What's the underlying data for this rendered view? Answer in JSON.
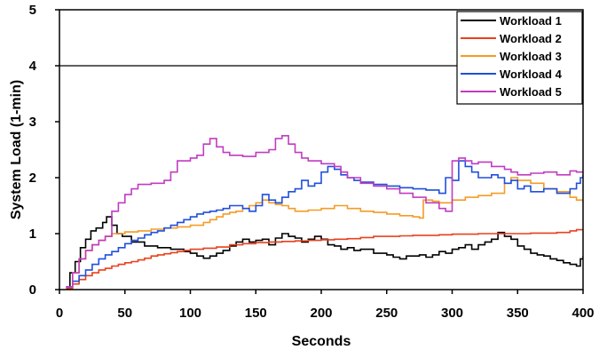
{
  "chart_data": {
    "type": "line",
    "title": "",
    "xlabel": "Seconds",
    "ylabel": "System Load (1-min)",
    "xlim": [
      0,
      400
    ],
    "ylim": [
      0,
      5
    ],
    "xticks": [
      "0",
      "50",
      "100",
      "150",
      "200",
      "250",
      "300",
      "350",
      "400"
    ],
    "yticks": [
      "0",
      "1",
      "2",
      "3",
      "4",
      "5"
    ],
    "grid": false,
    "legend_position": "top-right",
    "reference_line": {
      "y": 4,
      "color": "#000000"
    },
    "series": [
      {
        "name": "Workload 1",
        "color": "#000000",
        "step": true,
        "points": [
          [
            5,
            0.05
          ],
          [
            8,
            0.3
          ],
          [
            12,
            0.5
          ],
          [
            16,
            0.75
          ],
          [
            20,
            0.9
          ],
          [
            24,
            1.05
          ],
          [
            28,
            1.1
          ],
          [
            33,
            1.2
          ],
          [
            36,
            1.3
          ],
          [
            40,
            1.15
          ],
          [
            44,
            1.0
          ],
          [
            48,
            0.95
          ],
          [
            55,
            0.85
          ],
          [
            65,
            0.78
          ],
          [
            75,
            0.75
          ],
          [
            85,
            0.72
          ],
          [
            95,
            0.68
          ],
          [
            100,
            0.65
          ],
          [
            105,
            0.6
          ],
          [
            110,
            0.56
          ],
          [
            115,
            0.6
          ],
          [
            120,
            0.65
          ],
          [
            125,
            0.7
          ],
          [
            130,
            0.78
          ],
          [
            135,
            0.85
          ],
          [
            140,
            0.9
          ],
          [
            145,
            0.85
          ],
          [
            150,
            0.88
          ],
          [
            155,
            0.9
          ],
          [
            160,
            0.8
          ],
          [
            165,
            0.92
          ],
          [
            170,
            1.0
          ],
          [
            175,
            0.95
          ],
          [
            180,
            0.92
          ],
          [
            185,
            0.85
          ],
          [
            190,
            0.9
          ],
          [
            195,
            0.95
          ],
          [
            200,
            0.9
          ],
          [
            205,
            0.8
          ],
          [
            210,
            0.78
          ],
          [
            215,
            0.72
          ],
          [
            220,
            0.75
          ],
          [
            225,
            0.7
          ],
          [
            230,
            0.72
          ],
          [
            240,
            0.65
          ],
          [
            250,
            0.62
          ],
          [
            255,
            0.58
          ],
          [
            260,
            0.55
          ],
          [
            265,
            0.6
          ],
          [
            275,
            0.62
          ],
          [
            280,
            0.58
          ],
          [
            285,
            0.62
          ],
          [
            290,
            0.68
          ],
          [
            295,
            0.65
          ],
          [
            300,
            0.72
          ],
          [
            305,
            0.75
          ],
          [
            310,
            0.8
          ],
          [
            315,
            0.72
          ],
          [
            320,
            0.8
          ],
          [
            325,
            0.85
          ],
          [
            330,
            0.9
          ],
          [
            335,
            1.02
          ],
          [
            340,
            0.95
          ],
          [
            345,
            0.9
          ],
          [
            350,
            0.78
          ],
          [
            355,
            0.72
          ],
          [
            360,
            0.65
          ],
          [
            365,
            0.62
          ],
          [
            370,
            0.6
          ],
          [
            375,
            0.55
          ],
          [
            380,
            0.52
          ],
          [
            385,
            0.48
          ],
          [
            390,
            0.45
          ],
          [
            395,
            0.42
          ],
          [
            398,
            0.55
          ],
          [
            400,
            0.6
          ]
        ]
      },
      {
        "name": "Workload 2",
        "color": "#e8401c",
        "step": true,
        "points": [
          [
            5,
            0.02
          ],
          [
            10,
            0.1
          ],
          [
            15,
            0.18
          ],
          [
            20,
            0.25
          ],
          [
            25,
            0.3
          ],
          [
            30,
            0.35
          ],
          [
            35,
            0.38
          ],
          [
            40,
            0.42
          ],
          [
            45,
            0.45
          ],
          [
            50,
            0.48
          ],
          [
            55,
            0.5
          ],
          [
            60,
            0.53
          ],
          [
            65,
            0.56
          ],
          [
            70,
            0.6
          ],
          [
            75,
            0.62
          ],
          [
            80,
            0.64
          ],
          [
            85,
            0.66
          ],
          [
            90,
            0.68
          ],
          [
            95,
            0.7
          ],
          [
            100,
            0.72
          ],
          [
            110,
            0.74
          ],
          [
            120,
            0.76
          ],
          [
            130,
            0.8
          ],
          [
            140,
            0.82
          ],
          [
            150,
            0.84
          ],
          [
            160,
            0.85
          ],
          [
            170,
            0.86
          ],
          [
            180,
            0.87
          ],
          [
            190,
            0.88
          ],
          [
            200,
            0.89
          ],
          [
            210,
            0.9
          ],
          [
            220,
            0.91
          ],
          [
            230,
            0.93
          ],
          [
            240,
            0.95
          ],
          [
            250,
            0.95
          ],
          [
            260,
            0.96
          ],
          [
            270,
            0.97
          ],
          [
            280,
            0.97
          ],
          [
            290,
            0.98
          ],
          [
            300,
            0.99
          ],
          [
            320,
            1.0
          ],
          [
            340,
            1.0
          ],
          [
            360,
            1.01
          ],
          [
            380,
            1.02
          ],
          [
            390,
            1.05
          ],
          [
            395,
            1.07
          ],
          [
            400,
            1.06
          ]
        ]
      },
      {
        "name": "Workload 3",
        "color": "#f39c26",
        "step": true,
        "points": [
          [
            5,
            0.05
          ],
          [
            10,
            0.3
          ],
          [
            15,
            0.55
          ],
          [
            20,
            0.7
          ],
          [
            25,
            0.8
          ],
          [
            30,
            0.88
          ],
          [
            35,
            0.95
          ],
          [
            40,
            1.0
          ],
          [
            50,
            1.03
          ],
          [
            60,
            1.05
          ],
          [
            70,
            1.08
          ],
          [
            80,
            1.1
          ],
          [
            90,
            1.12
          ],
          [
            100,
            1.15
          ],
          [
            110,
            1.2
          ],
          [
            115,
            1.25
          ],
          [
            120,
            1.3
          ],
          [
            125,
            1.35
          ],
          [
            130,
            1.38
          ],
          [
            135,
            1.4
          ],
          [
            140,
            1.45
          ],
          [
            145,
            1.5
          ],
          [
            150,
            1.55
          ],
          [
            155,
            1.6
          ],
          [
            160,
            1.55
          ],
          [
            165,
            1.52
          ],
          [
            170,
            1.5
          ],
          [
            175,
            1.45
          ],
          [
            180,
            1.4
          ],
          [
            190,
            1.42
          ],
          [
            200,
            1.45
          ],
          [
            210,
            1.5
          ],
          [
            220,
            1.45
          ],
          [
            230,
            1.4
          ],
          [
            240,
            1.38
          ],
          [
            250,
            1.35
          ],
          [
            260,
            1.32
          ],
          [
            270,
            1.3
          ],
          [
            275,
            1.28
          ],
          [
            278,
            1.6
          ],
          [
            285,
            1.58
          ],
          [
            290,
            1.55
          ],
          [
            300,
            1.6
          ],
          [
            310,
            1.65
          ],
          [
            320,
            1.68
          ],
          [
            330,
            1.72
          ],
          [
            340,
            1.9
          ],
          [
            345,
            2.0
          ],
          [
            350,
            1.95
          ],
          [
            360,
            1.9
          ],
          [
            370,
            1.8
          ],
          [
            380,
            1.75
          ],
          [
            390,
            1.65
          ],
          [
            395,
            1.6
          ],
          [
            400,
            1.55
          ]
        ]
      },
      {
        "name": "Workload 4",
        "color": "#1f4fdc",
        "step": true,
        "points": [
          [
            5,
            0.05
          ],
          [
            10,
            0.15
          ],
          [
            15,
            0.25
          ],
          [
            20,
            0.35
          ],
          [
            25,
            0.45
          ],
          [
            30,
            0.55
          ],
          [
            35,
            0.62
          ],
          [
            40,
            0.68
          ],
          [
            45,
            0.75
          ],
          [
            50,
            0.82
          ],
          [
            55,
            0.88
          ],
          [
            60,
            0.92
          ],
          [
            65,
            0.98
          ],
          [
            70,
            1.02
          ],
          [
            75,
            1.05
          ],
          [
            80,
            1.1
          ],
          [
            85,
            1.15
          ],
          [
            90,
            1.2
          ],
          [
            95,
            1.25
          ],
          [
            100,
            1.3
          ],
          [
            105,
            1.35
          ],
          [
            110,
            1.38
          ],
          [
            115,
            1.4
          ],
          [
            120,
            1.42
          ],
          [
            125,
            1.45
          ],
          [
            130,
            1.5
          ],
          [
            140,
            1.45
          ],
          [
            145,
            1.4
          ],
          [
            150,
            1.5
          ],
          [
            155,
            1.7
          ],
          [
            160,
            1.6
          ],
          [
            165,
            1.55
          ],
          [
            170,
            1.65
          ],
          [
            175,
            1.75
          ],
          [
            180,
            1.8
          ],
          [
            185,
            1.95
          ],
          [
            190,
            1.85
          ],
          [
            195,
            1.9
          ],
          [
            200,
            2.1
          ],
          [
            205,
            2.2
          ],
          [
            210,
            2.15
          ],
          [
            215,
            2.05
          ],
          [
            220,
            2.0
          ],
          [
            225,
            1.95
          ],
          [
            230,
            1.92
          ],
          [
            240,
            1.88
          ],
          [
            250,
            1.85
          ],
          [
            260,
            1.82
          ],
          [
            270,
            1.8
          ],
          [
            280,
            1.78
          ],
          [
            290,
            1.72
          ],
          [
            295,
            2.0
          ],
          [
            300,
            1.95
          ],
          [
            305,
            2.3
          ],
          [
            310,
            2.2
          ],
          [
            315,
            2.1
          ],
          [
            320,
            2.0
          ],
          [
            330,
            2.05
          ],
          [
            335,
            2.0
          ],
          [
            340,
            1.9
          ],
          [
            345,
            1.95
          ],
          [
            350,
            1.8
          ],
          [
            355,
            1.85
          ],
          [
            360,
            1.75
          ],
          [
            370,
            1.8
          ],
          [
            380,
            1.72
          ],
          [
            390,
            1.8
          ],
          [
            395,
            1.9
          ],
          [
            398,
            2.0
          ],
          [
            400,
            2.05
          ]
        ]
      },
      {
        "name": "Workload 5",
        "color": "#c03cc0",
        "step": true,
        "points": [
          [
            5,
            0.05
          ],
          [
            10,
            0.3
          ],
          [
            15,
            0.55
          ],
          [
            20,
            0.7
          ],
          [
            25,
            0.8
          ],
          [
            30,
            0.88
          ],
          [
            35,
            0.95
          ],
          [
            40,
            1.4
          ],
          [
            45,
            1.55
          ],
          [
            50,
            1.7
          ],
          [
            55,
            1.8
          ],
          [
            60,
            1.88
          ],
          [
            70,
            1.9
          ],
          [
            80,
            1.95
          ],
          [
            85,
            2.1
          ],
          [
            90,
            2.3
          ],
          [
            100,
            2.35
          ],
          [
            105,
            2.4
          ],
          [
            110,
            2.6
          ],
          [
            115,
            2.7
          ],
          [
            120,
            2.55
          ],
          [
            125,
            2.45
          ],
          [
            130,
            2.4
          ],
          [
            140,
            2.38
          ],
          [
            150,
            2.45
          ],
          [
            160,
            2.5
          ],
          [
            165,
            2.7
          ],
          [
            170,
            2.75
          ],
          [
            175,
            2.6
          ],
          [
            180,
            2.45
          ],
          [
            185,
            2.35
          ],
          [
            190,
            2.3
          ],
          [
            200,
            2.25
          ],
          [
            210,
            2.2
          ],
          [
            215,
            2.1
          ],
          [
            220,
            2.0
          ],
          [
            230,
            1.9
          ],
          [
            240,
            1.85
          ],
          [
            250,
            1.8
          ],
          [
            260,
            1.72
          ],
          [
            270,
            1.65
          ],
          [
            280,
            1.55
          ],
          [
            290,
            1.45
          ],
          [
            295,
            1.4
          ],
          [
            300,
            2.3
          ],
          [
            305,
            2.35
          ],
          [
            310,
            2.3
          ],
          [
            315,
            2.25
          ],
          [
            320,
            2.28
          ],
          [
            330,
            2.2
          ],
          [
            340,
            2.15
          ],
          [
            345,
            2.1
          ],
          [
            350,
            2.05
          ],
          [
            360,
            2.08
          ],
          [
            370,
            2.1
          ],
          [
            380,
            2.05
          ],
          [
            390,
            2.12
          ],
          [
            395,
            2.1
          ],
          [
            400,
            2.1
          ]
        ]
      }
    ]
  }
}
